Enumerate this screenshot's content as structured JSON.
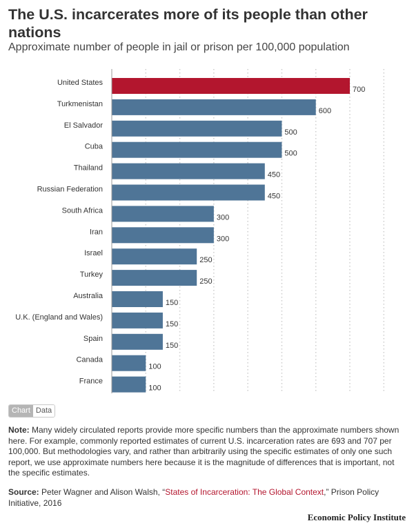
{
  "title": "The U.S. incarcerates more of its people than other nations",
  "subtitle": "Approximate number of people in jail or prison per 100,000 population",
  "toggle": {
    "chart_label": "Chart",
    "data_label": "Data",
    "active": "Chart"
  },
  "note": {
    "label": "Note:",
    "text": "Many widely circulated reports provide more specific numbers than the approximate numbers shown here. For example, commonly reported estimates of current U.S. incarceration rates are 693 and 707 per 100,000. But methodologies vary, and rather than arbitrarily using the specific estimates of only one such report, we use approximate numbers here because it is the magnitude of differences that is important, not the specific estimates."
  },
  "source": {
    "label": "Source:",
    "before": "Peter Wagner and Alison Walsh, “",
    "link": "States of Incarceration: The Global Context",
    "after": ",” Prison Policy Initiative, 2016"
  },
  "brand": "Economic Policy Institute",
  "colors": {
    "highlight": "#b3162e",
    "bar": "#4f7597",
    "gridline": "#cccccc"
  },
  "chart_data": {
    "type": "bar",
    "orientation": "horizontal",
    "categories": [
      "United States",
      "Turkmenistan",
      "El Salvador",
      "Cuba",
      "Thailand",
      "Russian Federation",
      "South Africa",
      "Iran",
      "Israel",
      "Turkey",
      "Australia",
      "U.K. (England and Wales)",
      "Spain",
      "Canada",
      "France"
    ],
    "values": [
      700,
      600,
      500,
      500,
      450,
      450,
      300,
      300,
      250,
      250,
      150,
      150,
      150,
      100,
      100
    ],
    "data_labels": [
      "700",
      "600",
      "500",
      "500",
      "450",
      "450",
      "300",
      "300",
      "250",
      "250",
      "150",
      "150",
      "150",
      "100",
      "100"
    ],
    "highlight_index": 0,
    "xlim": [
      0,
      800
    ],
    "grid": true,
    "x_tick_labels_shown": false,
    "legend": "none"
  }
}
